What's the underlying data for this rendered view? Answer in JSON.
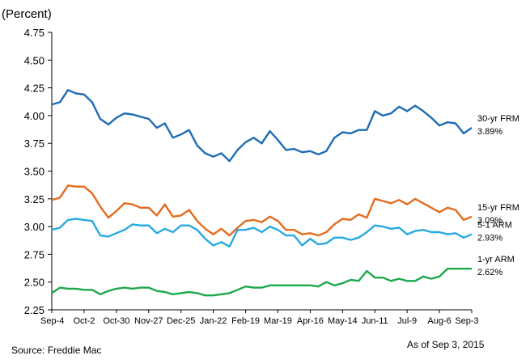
{
  "chart_data": {
    "type": "line",
    "unit_label": "(Percent)",
    "ylim": [
      2.25,
      4.75
    ],
    "y_ticks": [
      "4.75",
      "4.50",
      "4.25",
      "4.00",
      "3.75",
      "3.50",
      "3.25",
      "3.00",
      "2.75",
      "2.50",
      "2.25"
    ],
    "x_labels": [
      "Sep-4",
      "Oct-2",
      "Oct-30",
      "Nov-27",
      "Dec-25",
      "Jan-22",
      "Feb-19",
      "Mar-19",
      "Apr-16",
      "May-14",
      "Jun-11",
      "Jul-9",
      "Aug-6",
      "Sep-3"
    ],
    "grid": false,
    "series": [
      {
        "name": "30-yr FRM",
        "end_label": "3.89%",
        "color": "#1F6CB5",
        "values": [
          4.1,
          4.12,
          4.23,
          4.2,
          4.19,
          4.12,
          3.97,
          3.92,
          3.98,
          4.02,
          4.01,
          3.99,
          3.97,
          3.89,
          3.93,
          3.8,
          3.83,
          3.87,
          3.73,
          3.66,
          3.63,
          3.66,
          3.59,
          3.69,
          3.76,
          3.8,
          3.75,
          3.86,
          3.78,
          3.69,
          3.7,
          3.67,
          3.68,
          3.65,
          3.68,
          3.8,
          3.85,
          3.84,
          3.87,
          3.87,
          4.04,
          4.0,
          4.02,
          4.08,
          4.04,
          4.09,
          4.04,
          3.98,
          3.91,
          3.94,
          3.93,
          3.84,
          3.89
        ]
      },
      {
        "name": "15-yr FRM",
        "end_label": "3.09%",
        "color": "#E36C1F",
        "values": [
          3.24,
          3.26,
          3.37,
          3.36,
          3.36,
          3.3,
          3.18,
          3.08,
          3.14,
          3.21,
          3.2,
          3.17,
          3.17,
          3.1,
          3.2,
          3.09,
          3.1,
          3.15,
          3.05,
          2.98,
          2.93,
          2.98,
          2.92,
          2.99,
          3.05,
          3.06,
          3.04,
          3.09,
          3.05,
          2.97,
          2.97,
          2.93,
          2.94,
          2.92,
          2.95,
          3.02,
          3.07,
          3.06,
          3.11,
          3.08,
          3.25,
          3.23,
          3.21,
          3.24,
          3.2,
          3.25,
          3.21,
          3.17,
          3.13,
          3.17,
          3.15,
          3.06,
          3.09
        ]
      },
      {
        "name": "5-1 ARM",
        "end_label": "2.93%",
        "color": "#27A9E1",
        "values": [
          2.97,
          2.99,
          3.06,
          3.07,
          3.06,
          3.05,
          2.92,
          2.91,
          2.94,
          2.97,
          3.02,
          3.01,
          3.01,
          2.94,
          2.98,
          2.95,
          3.01,
          3.01,
          2.97,
          2.89,
          2.83,
          2.86,
          2.82,
          2.97,
          2.97,
          2.99,
          2.95,
          3.0,
          2.97,
          2.92,
          2.92,
          2.83,
          2.89,
          2.84,
          2.85,
          2.9,
          2.9,
          2.88,
          2.9,
          2.95,
          3.01,
          3.0,
          2.98,
          2.99,
          2.93,
          2.96,
          2.97,
          2.95,
          2.95,
          2.93,
          2.94,
          2.9,
          2.93
        ]
      },
      {
        "name": "1-yr ARM",
        "end_label": "2.62%",
        "color": "#1CA84B",
        "values": [
          2.4,
          2.45,
          2.44,
          2.44,
          2.43,
          2.43,
          2.39,
          2.42,
          2.44,
          2.45,
          2.44,
          2.45,
          2.45,
          2.42,
          2.41,
          2.39,
          2.4,
          2.41,
          2.4,
          2.38,
          2.38,
          2.39,
          2.4,
          2.43,
          2.46,
          2.45,
          2.45,
          2.47,
          2.47,
          2.47,
          2.47,
          2.47,
          2.47,
          2.46,
          2.5,
          2.47,
          2.49,
          2.52,
          2.51,
          2.6,
          2.54,
          2.54,
          2.51,
          2.53,
          2.51,
          2.51,
          2.55,
          2.53,
          2.55,
          2.62,
          2.62,
          2.62,
          2.62
        ]
      }
    ]
  },
  "footer": {
    "source": "Source: Freddie Mac",
    "as_of": "As of Sep 3, 2015"
  }
}
